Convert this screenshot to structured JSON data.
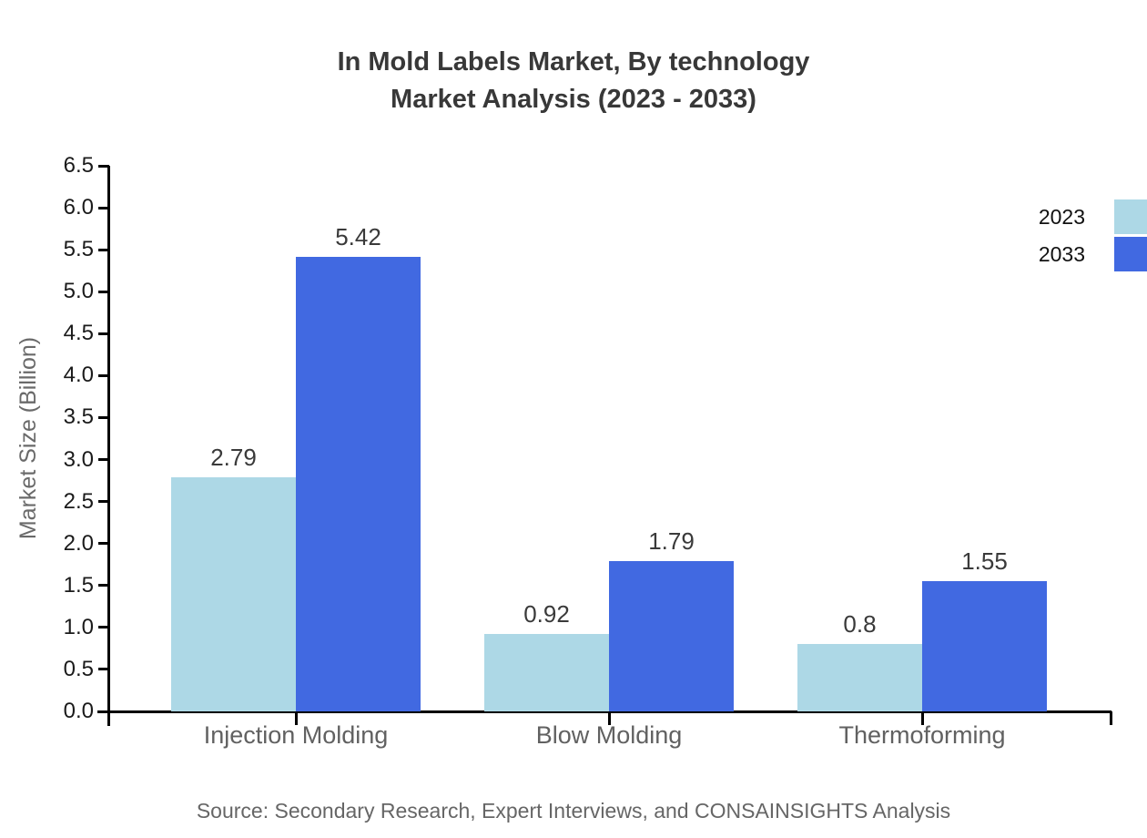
{
  "title": {
    "line1": "In Mold Labels Market, By technology",
    "line2": "Market Analysis (2023 - 2033)"
  },
  "source": "Source: Secondary Research, Expert Interviews, and CONSAINSIGHTS Analysis",
  "chart_data": {
    "type": "bar",
    "title": "In Mold Labels Market, By technology Market Analysis (2023 - 2033)",
    "categories": [
      "Injection Molding",
      "Blow Molding",
      "Thermoforming"
    ],
    "series": [
      {
        "name": "2023",
        "color": "#ADD8E6",
        "values": [
          2.79,
          0.92,
          0.8
        ],
        "labels": [
          "2.79",
          "0.92",
          "0.8"
        ]
      },
      {
        "name": "2033",
        "color": "#4169E1",
        "values": [
          5.42,
          1.79,
          1.55
        ],
        "labels": [
          "5.42",
          "1.79",
          "1.55"
        ]
      }
    ],
    "xlabel": "",
    "ylabel": "Market Size (Billion)",
    "ylim": [
      0,
      6.5
    ],
    "ytick_step": 0.5,
    "yticks": [
      "0.0",
      "0.5",
      "1.0",
      "1.5",
      "2.0",
      "2.5",
      "3.0",
      "3.5",
      "4.0",
      "4.5",
      "5.0",
      "5.5",
      "6.0",
      "6.5"
    ],
    "grid": false,
    "legend_position": "top-right",
    "axis_color": "#000000",
    "title_color": "#383838",
    "tick_label_color": "#1a1a1a",
    "category_label_color": "#616161"
  }
}
